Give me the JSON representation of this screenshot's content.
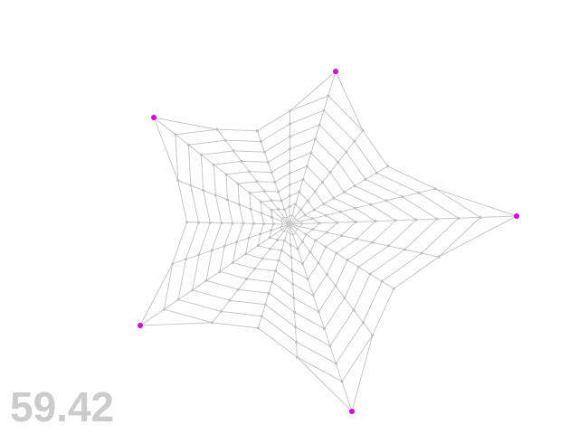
{
  "fps_readout": "59.42",
  "colors": {
    "background": "#ffffff",
    "thread": "#c8c8c8",
    "node": "#c2c2c2",
    "anchor": "#dd00dd",
    "readout": "#cccccc"
  },
  "icons": [
    "anchor-point-icon"
  ]
}
